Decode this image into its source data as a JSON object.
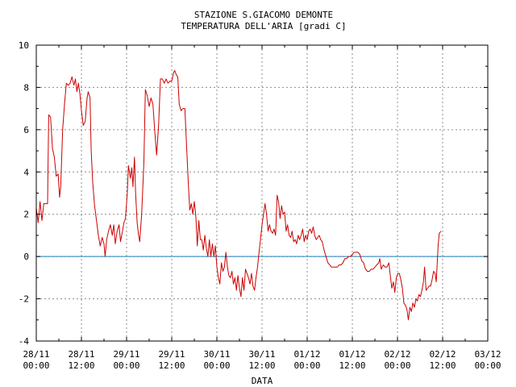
{
  "chart_data": {
    "type": "line",
    "title": "STAZIONE S.GIACOMO DEMONTE",
    "subtitle": "TEMPERATURA DELL'ARIA [gradi C]",
    "xlabel": "DATA",
    "ylabel": "",
    "ylim": [
      -4,
      10
    ],
    "xlim": [
      0,
      120
    ],
    "x_unit": "hours since 28/11 00:00",
    "y_ticks": [
      "10",
      "8",
      "6",
      "4",
      "2",
      "0",
      "-2",
      "-4"
    ],
    "x_ticks": [
      {
        "date": "28/11",
        "time": "00:00"
      },
      {
        "date": "28/11",
        "time": "12:00"
      },
      {
        "date": "29/11",
        "time": "00:00"
      },
      {
        "date": "29/11",
        "time": "12:00"
      },
      {
        "date": "30/11",
        "time": "00:00"
      },
      {
        "date": "30/11",
        "time": "12:00"
      },
      {
        "date": "01/12",
        "time": "00:00"
      },
      {
        "date": "01/12",
        "time": "12:00"
      },
      {
        "date": "02/12",
        "time": "00:00"
      },
      {
        "date": "02/12",
        "time": "12:00"
      },
      {
        "date": "03/12",
        "time": "00:00"
      }
    ],
    "grid": true,
    "reference_line": {
      "y": 0,
      "color": "#1f7fbf"
    },
    "series": [
      {
        "color": "#cc0000",
        "points": [
          [
            0,
            2.3
          ],
          [
            0.5,
            1.6
          ],
          [
            1,
            2.6
          ],
          [
            1.5,
            1.7
          ],
          [
            2,
            2.5
          ],
          [
            2.5,
            2.5
          ],
          [
            3,
            2.5
          ],
          [
            3.3,
            6.7
          ],
          [
            3.8,
            6.6
          ],
          [
            4.3,
            5.1
          ],
          [
            4.8,
            4.7
          ],
          [
            5.3,
            3.8
          ],
          [
            5.8,
            3.9
          ],
          [
            6.2,
            2.8
          ],
          [
            6.5,
            3.3
          ],
          [
            7,
            6.0
          ],
          [
            7.5,
            7.2
          ],
          [
            8,
            8.2
          ],
          [
            8.5,
            8.1
          ],
          [
            9,
            8.2
          ],
          [
            9.5,
            8.5
          ],
          [
            10,
            8.1
          ],
          [
            10.4,
            8.4
          ],
          [
            10.8,
            7.8
          ],
          [
            11.2,
            8.2
          ],
          [
            11.6,
            7.7
          ],
          [
            12,
            6.9
          ],
          [
            12.5,
            6.2
          ],
          [
            13,
            6.4
          ],
          [
            13.5,
            7.5
          ],
          [
            13.8,
            7.8
          ],
          [
            14.3,
            7.5
          ],
          [
            14.6,
            5.0
          ],
          [
            15,
            3.5
          ],
          [
            15.5,
            2.4
          ],
          [
            16,
            1.7
          ],
          [
            16.5,
            1.0
          ],
          [
            17,
            0.5
          ],
          [
            17.5,
            0.9
          ],
          [
            18,
            0.6
          ],
          [
            18.3,
            0.0
          ],
          [
            18.7,
            0.8
          ],
          [
            19.2,
            1.2
          ],
          [
            19.7,
            1.5
          ],
          [
            20.2,
            1.0
          ],
          [
            20.6,
            1.5
          ],
          [
            21,
            0.6
          ],
          [
            21.5,
            1.2
          ],
          [
            22,
            1.5
          ],
          [
            22.4,
            0.7
          ],
          [
            22.9,
            1.2
          ],
          [
            23.3,
            1.6
          ],
          [
            23.7,
            1.8
          ],
          [
            24.2,
            3.0
          ],
          [
            24.5,
            4.3
          ],
          [
            25,
            3.7
          ],
          [
            25.4,
            4.2
          ],
          [
            25.7,
            3.3
          ],
          [
            26.1,
            4.7
          ],
          [
            26.4,
            3.0
          ],
          [
            26.8,
            1.6
          ],
          [
            27.2,
            1.0
          ],
          [
            27.5,
            0.7
          ],
          [
            28,
            2.0
          ],
          [
            28.6,
            4.5
          ],
          [
            29,
            7.9
          ],
          [
            29.5,
            7.6
          ],
          [
            30,
            7.1
          ],
          [
            30.5,
            7.5
          ],
          [
            31,
            7.2
          ],
          [
            31.5,
            5.9
          ],
          [
            32,
            4.8
          ],
          [
            32.5,
            6.2
          ],
          [
            33,
            8.4
          ],
          [
            33.5,
            8.4
          ],
          [
            34,
            8.2
          ],
          [
            34.5,
            8.4
          ],
          [
            35,
            8.2
          ],
          [
            35.5,
            8.3
          ],
          [
            36,
            8.3
          ],
          [
            36.5,
            8.7
          ],
          [
            36.8,
            8.8
          ],
          [
            37.2,
            8.6
          ],
          [
            37.6,
            8.5
          ],
          [
            38,
            7.2
          ],
          [
            38.5,
            6.9
          ],
          [
            39,
            7.0
          ],
          [
            39.5,
            7.0
          ],
          [
            40,
            5.0
          ],
          [
            40.4,
            3.5
          ],
          [
            40.8,
            2.2
          ],
          [
            41.2,
            2.5
          ],
          [
            41.6,
            2.0
          ],
          [
            42,
            2.6
          ],
          [
            42.4,
            1.9
          ],
          [
            42.8,
            0.5
          ],
          [
            43.2,
            1.7
          ],
          [
            43.6,
            0.8
          ],
          [
            44,
            0.8
          ],
          [
            44.4,
            0.3
          ],
          [
            44.8,
            1.0
          ],
          [
            45.2,
            0.4
          ],
          [
            45.6,
            0.0
          ],
          [
            46,
            0.8
          ],
          [
            46.4,
            0.0
          ],
          [
            46.8,
            0.6
          ],
          [
            47.2,
            0.0
          ],
          [
            47.6,
            0.5
          ],
          [
            48,
            -0.5
          ],
          [
            48.4,
            -1.0
          ],
          [
            48.8,
            -1.3
          ],
          [
            49.2,
            -0.3
          ],
          [
            49.6,
            -0.7
          ],
          [
            50,
            -0.5
          ],
          [
            50.4,
            0.2
          ],
          [
            50.8,
            -0.5
          ],
          [
            51.2,
            -0.9
          ],
          [
            51.6,
            -1.0
          ],
          [
            52,
            -0.7
          ],
          [
            52.4,
            -1.3
          ],
          [
            52.8,
            -1.0
          ],
          [
            53.2,
            -1.6
          ],
          [
            53.6,
            -0.9
          ],
          [
            54,
            -1.5
          ],
          [
            54.4,
            -1.9
          ],
          [
            54.8,
            -1.0
          ],
          [
            55.2,
            -1.6
          ],
          [
            55.6,
            -0.6
          ],
          [
            56,
            -0.8
          ],
          [
            56.4,
            -1.0
          ],
          [
            56.8,
            -1.3
          ],
          [
            57.2,
            -0.8
          ],
          [
            57.6,
            -1.4
          ],
          [
            58,
            -1.6
          ],
          [
            58.4,
            -1.0
          ],
          [
            58.8,
            -0.5
          ],
          [
            59.2,
            0.2
          ],
          [
            59.6,
            0.8
          ],
          [
            60,
            1.5
          ],
          [
            60.4,
            2.0
          ],
          [
            60.8,
            2.5
          ],
          [
            61.2,
            2.0
          ],
          [
            61.6,
            1.2
          ],
          [
            62,
            1.5
          ],
          [
            62.4,
            1.2
          ],
          [
            62.8,
            1.1
          ],
          [
            63.2,
            1.3
          ],
          [
            63.6,
            1.0
          ],
          [
            64,
            2.9
          ],
          [
            64.4,
            2.6
          ],
          [
            64.8,
            1.8
          ],
          [
            65.2,
            2.4
          ],
          [
            65.6,
            2.0
          ],
          [
            66,
            2.1
          ],
          [
            66.4,
            1.2
          ],
          [
            66.8,
            1.5
          ],
          [
            67.2,
            1.0
          ],
          [
            67.6,
            0.9
          ],
          [
            68,
            1.2
          ],
          [
            68.4,
            0.7
          ],
          [
            68.8,
            0.8
          ],
          [
            69.2,
            0.6
          ],
          [
            69.6,
            1.0
          ],
          [
            70,
            0.8
          ],
          [
            70.4,
            1.0
          ],
          [
            70.8,
            1.3
          ],
          [
            71.2,
            0.7
          ],
          [
            71.6,
            1.0
          ],
          [
            72,
            0.8
          ],
          [
            72.4,
            1.2
          ],
          [
            72.8,
            1.3
          ],
          [
            73.2,
            1.1
          ],
          [
            73.6,
            1.4
          ],
          [
            74,
            1.0
          ],
          [
            74.4,
            0.8
          ],
          [
            74.8,
            0.9
          ],
          [
            75.2,
            1.0
          ],
          [
            75.6,
            0.8
          ],
          [
            76,
            0.7
          ],
          [
            76.5,
            0.3
          ],
          [
            77,
            0.0
          ],
          [
            77.5,
            -0.3
          ],
          [
            78,
            -0.4
          ],
          [
            78.5,
            -0.5
          ],
          [
            79,
            -0.5
          ],
          [
            79.5,
            -0.5
          ],
          [
            80,
            -0.5
          ],
          [
            80.5,
            -0.4
          ],
          [
            81,
            -0.4
          ],
          [
            81.5,
            -0.3
          ],
          [
            82,
            -0.1
          ],
          [
            82.5,
            -0.1
          ],
          [
            83,
            0.0
          ],
          [
            83.5,
            0.0
          ],
          [
            84,
            0.1
          ],
          [
            84.5,
            0.2
          ],
          [
            85,
            0.2
          ],
          [
            85.5,
            0.2
          ],
          [
            86,
            0.1
          ],
          [
            86.5,
            -0.2
          ],
          [
            87,
            -0.3
          ],
          [
            87.5,
            -0.6
          ],
          [
            88,
            -0.7
          ],
          [
            88.5,
            -0.7
          ],
          [
            89,
            -0.6
          ],
          [
            89.5,
            -0.6
          ],
          [
            90,
            -0.5
          ],
          [
            90.5,
            -0.4
          ],
          [
            91,
            -0.3
          ],
          [
            91.3,
            -0.1
          ],
          [
            91.7,
            -0.6
          ],
          [
            92.2,
            -0.4
          ],
          [
            92.7,
            -0.5
          ],
          [
            93.2,
            -0.5
          ],
          [
            93.7,
            -0.3
          ],
          [
            94.1,
            -0.9
          ],
          [
            94.5,
            -1.5
          ],
          [
            94.9,
            -1.2
          ],
          [
            95.3,
            -1.7
          ],
          [
            95.7,
            -1.0
          ],
          [
            96.1,
            -0.8
          ],
          [
            96.5,
            -0.8
          ],
          [
            96.9,
            -1.1
          ],
          [
            97.3,
            -1.5
          ],
          [
            97.7,
            -2.2
          ],
          [
            98.1,
            -2.3
          ],
          [
            98.5,
            -2.5
          ],
          [
            98.9,
            -3.0
          ],
          [
            99.3,
            -2.4
          ],
          [
            99.7,
            -2.6
          ],
          [
            100.1,
            -2.2
          ],
          [
            100.5,
            -2.4
          ],
          [
            100.9,
            -2.0
          ],
          [
            101.3,
            -2.1
          ],
          [
            101.7,
            -1.8
          ],
          [
            102.1,
            -1.9
          ],
          [
            102.5,
            -1.6
          ],
          [
            102.9,
            -1.2
          ],
          [
            103.2,
            -0.5
          ],
          [
            103.6,
            -1.6
          ],
          [
            104,
            -1.5
          ],
          [
            104.4,
            -1.4
          ],
          [
            104.8,
            -1.4
          ],
          [
            105.2,
            -1.1
          ],
          [
            105.6,
            -0.7
          ],
          [
            106,
            -0.8
          ],
          [
            106.3,
            -1.2
          ],
          [
            106.8,
            0.5
          ],
          [
            107.1,
            1.1
          ],
          [
            107.6,
            1.2
          ]
        ]
      }
    ]
  }
}
